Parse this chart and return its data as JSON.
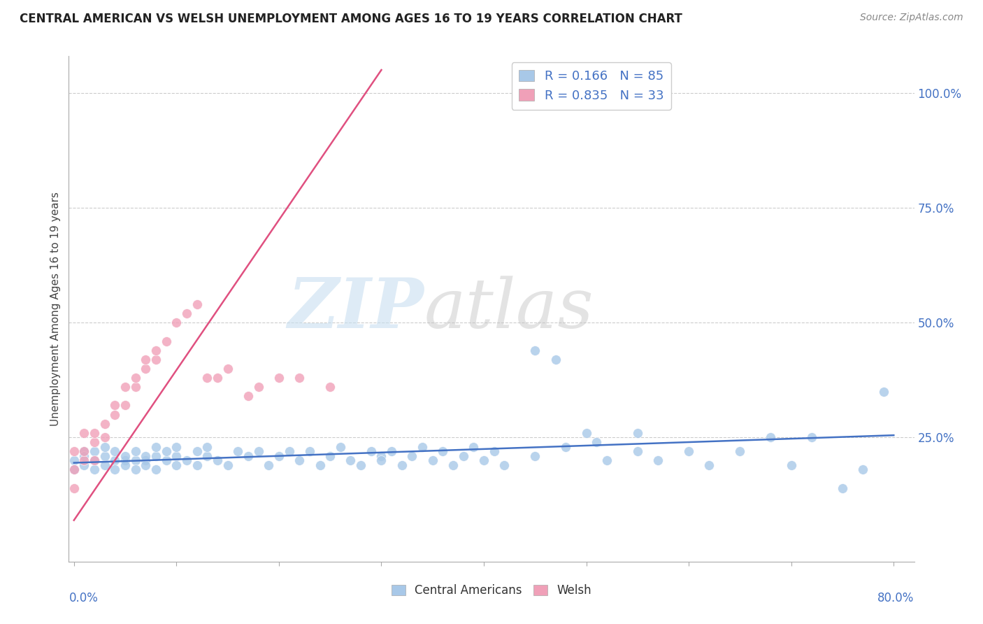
{
  "title": "CENTRAL AMERICAN VS WELSH UNEMPLOYMENT AMONG AGES 16 TO 19 YEARS CORRELATION CHART",
  "source": "Source: ZipAtlas.com",
  "ylabel": "Unemployment Among Ages 16 to 19 years",
  "blue_color": "#A8C8E8",
  "pink_color": "#F0A0B8",
  "blue_line_color": "#4472C4",
  "pink_line_color": "#E05080",
  "legend_R_blue": "0.166",
  "legend_N_blue": "85",
  "legend_R_pink": "0.835",
  "legend_N_pink": "33",
  "xlim": [
    0.0,
    0.8
  ],
  "ylim": [
    0.0,
    1.05
  ],
  "yticks": [
    0.25,
    0.5,
    0.75,
    1.0
  ],
  "ytick_labels": [
    "25.0%",
    "50.0%",
    "75.0%",
    "100.0%"
  ],
  "blue_scatter_x": [
    0.0,
    0.0,
    0.01,
    0.01,
    0.01,
    0.02,
    0.02,
    0.02,
    0.03,
    0.03,
    0.03,
    0.04,
    0.04,
    0.04,
    0.05,
    0.05,
    0.05,
    0.06,
    0.06,
    0.06,
    0.07,
    0.07,
    0.07,
    0.08,
    0.08,
    0.08,
    0.09,
    0.09,
    0.1,
    0.1,
    0.1,
    0.11,
    0.12,
    0.12,
    0.13,
    0.13,
    0.14,
    0.15,
    0.16,
    0.17,
    0.18,
    0.19,
    0.2,
    0.21,
    0.22,
    0.23,
    0.24,
    0.25,
    0.26,
    0.27,
    0.28,
    0.29,
    0.3,
    0.3,
    0.31,
    0.32,
    0.33,
    0.34,
    0.35,
    0.36,
    0.37,
    0.38,
    0.39,
    0.4,
    0.41,
    0.42,
    0.45,
    0.45,
    0.47,
    0.48,
    0.5,
    0.51,
    0.52,
    0.55,
    0.55,
    0.57,
    0.6,
    0.62,
    0.65,
    0.68,
    0.7,
    0.72,
    0.75,
    0.77,
    0.79
  ],
  "blue_scatter_y": [
    0.2,
    0.18,
    0.22,
    0.19,
    0.21,
    0.2,
    0.18,
    0.22,
    0.21,
    0.19,
    0.23,
    0.2,
    0.18,
    0.22,
    0.2,
    0.19,
    0.21,
    0.2,
    0.18,
    0.22,
    0.2,
    0.19,
    0.21,
    0.21,
    0.18,
    0.23,
    0.2,
    0.22,
    0.21,
    0.19,
    0.23,
    0.2,
    0.19,
    0.22,
    0.21,
    0.23,
    0.2,
    0.19,
    0.22,
    0.21,
    0.22,
    0.19,
    0.21,
    0.22,
    0.2,
    0.22,
    0.19,
    0.21,
    0.23,
    0.2,
    0.19,
    0.22,
    0.21,
    0.2,
    0.22,
    0.19,
    0.21,
    0.23,
    0.2,
    0.22,
    0.19,
    0.21,
    0.23,
    0.2,
    0.22,
    0.19,
    0.44,
    0.21,
    0.42,
    0.23,
    0.26,
    0.24,
    0.2,
    0.26,
    0.22,
    0.2,
    0.22,
    0.19,
    0.22,
    0.25,
    0.19,
    0.25,
    0.14,
    0.18,
    0.35
  ],
  "pink_scatter_x": [
    0.0,
    0.0,
    0.0,
    0.01,
    0.01,
    0.01,
    0.02,
    0.02,
    0.02,
    0.03,
    0.03,
    0.04,
    0.04,
    0.05,
    0.05,
    0.06,
    0.06,
    0.07,
    0.07,
    0.08,
    0.08,
    0.09,
    0.1,
    0.11,
    0.12,
    0.13,
    0.14,
    0.15,
    0.17,
    0.18,
    0.2,
    0.22,
    0.25
  ],
  "pink_scatter_y": [
    0.14,
    0.18,
    0.22,
    0.2,
    0.22,
    0.26,
    0.2,
    0.24,
    0.26,
    0.25,
    0.28,
    0.3,
    0.32,
    0.32,
    0.36,
    0.36,
    0.38,
    0.4,
    0.42,
    0.42,
    0.44,
    0.46,
    0.5,
    0.52,
    0.54,
    0.38,
    0.38,
    0.4,
    0.34,
    0.36,
    0.38,
    0.38,
    0.36
  ],
  "blue_line_x": [
    0.0,
    0.8
  ],
  "blue_line_y": [
    0.195,
    0.255
  ],
  "pink_line_x": [
    0.0,
    0.3
  ],
  "pink_line_y": [
    0.07,
    1.05
  ]
}
